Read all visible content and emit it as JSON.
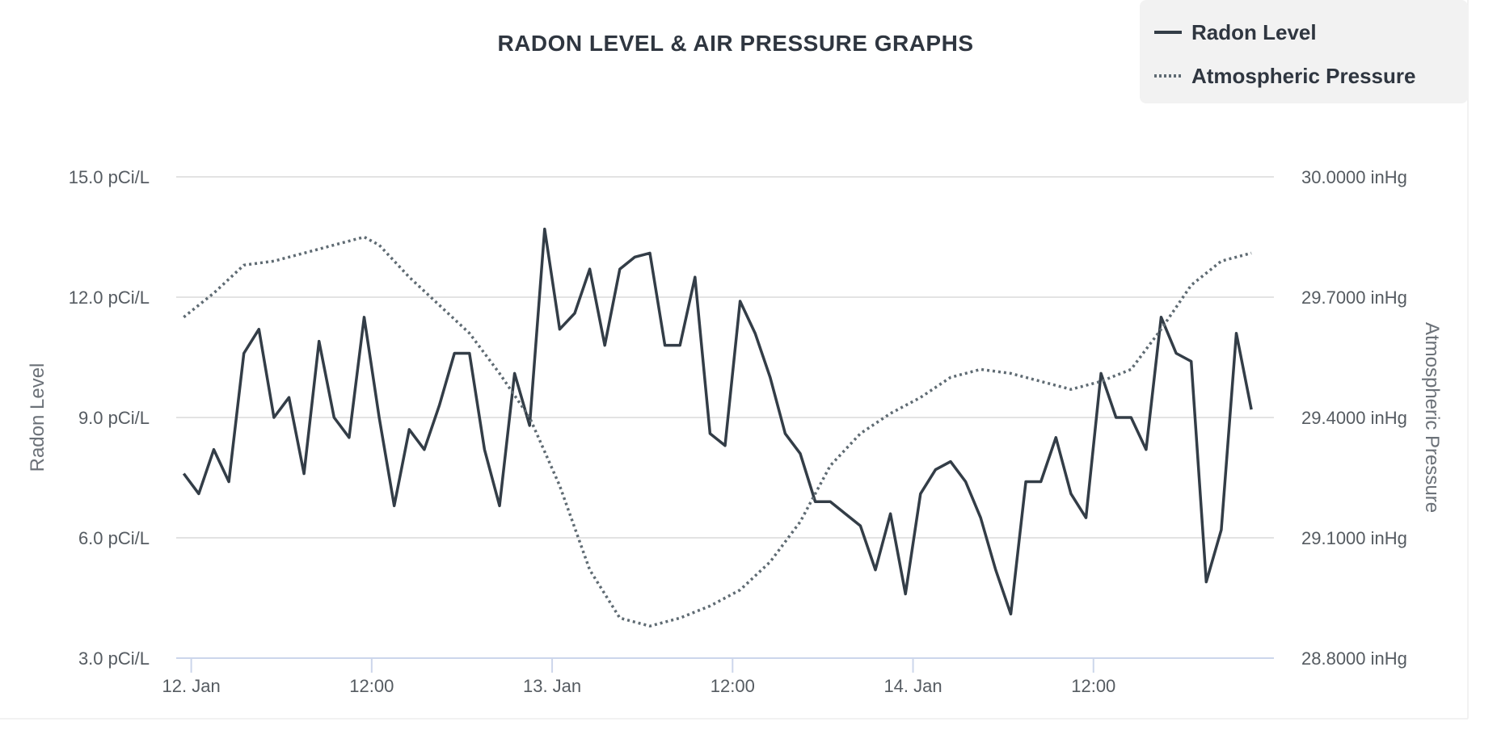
{
  "chart_data": {
    "type": "line",
    "title": "RADON LEVEL & AIR PRESSURE GRAPHS",
    "x_tick_labels": [
      "12. Jan",
      "12:00",
      "13. Jan",
      "12:00",
      "14. Jan",
      "12:00"
    ],
    "x_tick_hours": [
      0,
      12,
      24,
      36,
      48,
      60
    ],
    "x_range_hours": [
      -1,
      72
    ],
    "y_left": {
      "label": "Radon Level",
      "range": [
        3,
        15
      ],
      "ticks": [
        "3.0 pCi/L",
        "6.0 pCi/L",
        "9.0 pCi/L",
        "12.0 pCi/L",
        "15.0 pCi/L"
      ],
      "tick_values": [
        3,
        6,
        9,
        12,
        15
      ]
    },
    "y_right": {
      "label": "Atmospheric Pressure",
      "range": [
        28.8,
        30.0
      ],
      "ticks": [
        "28.8000 inHg",
        "29.1000 inHg",
        "29.4000 inHg",
        "29.7000 inHg",
        "30.0000 inHg"
      ],
      "tick_values": [
        28.8,
        29.1,
        29.4,
        29.7,
        30.0
      ]
    },
    "grid": true,
    "legend_position": "top-right",
    "series": [
      {
        "name": "Radon Level",
        "axis": "left",
        "style": "solid",
        "color": "#333d47",
        "x_hours": [
          -0.5,
          0.5,
          1.5,
          2.5,
          3.5,
          4.5,
          5.5,
          6.5,
          7.5,
          8.5,
          9.5,
          10.5,
          11.5,
          12.5,
          13.5,
          14.5,
          15.5,
          16.5,
          17.5,
          18.5,
          19.5,
          20.5,
          21.5,
          22.5,
          23.5,
          24.5,
          25.5,
          26.5,
          27.5,
          28.5,
          29.5,
          30.5,
          31.5,
          32.5,
          33.5,
          34.5,
          35.5,
          36.5,
          37.5,
          38.5,
          39.5,
          40.5,
          41.5,
          42.5,
          43.5,
          44.5,
          45.5,
          46.5,
          47.5,
          48.5,
          49.5,
          50.5,
          51.5,
          52.5,
          53.5,
          54.5,
          55.5,
          56.5,
          57.5,
          58.5,
          59.5,
          60.5,
          61.5,
          62.5,
          63.5,
          64.5,
          65.5,
          66.5,
          67.5,
          68.5,
          69.5,
          70.5
        ],
        "values": [
          7.6,
          7.1,
          8.2,
          7.4,
          10.6,
          11.2,
          9.0,
          9.5,
          7.6,
          10.9,
          9.0,
          8.5,
          11.5,
          9.0,
          6.8,
          8.7,
          8.2,
          9.3,
          10.6,
          10.6,
          8.2,
          6.8,
          10.1,
          8.8,
          13.7,
          11.2,
          11.6,
          12.7,
          10.8,
          12.7,
          13.0,
          13.1,
          10.8,
          10.8,
          12.5,
          8.6,
          8.3,
          11.9,
          11.1,
          10.0,
          8.6,
          8.1,
          6.9,
          6.9,
          6.6,
          6.3,
          5.2,
          6.6,
          4.6,
          7.1,
          7.7,
          7.9,
          7.4,
          6.5,
          5.2,
          4.1,
          7.4,
          7.4,
          8.5,
          7.1,
          6.5,
          10.1,
          9.0,
          9.0,
          8.2,
          11.5,
          10.6,
          10.4,
          4.9,
          6.2,
          11.1,
          9.2
        ]
      },
      {
        "name": "Atmospheric Pressure",
        "axis": "right",
        "style": "dotted",
        "color": "#5f6b73",
        "x_hours": [
          -0.5,
          1.5,
          3.5,
          5.5,
          7.5,
          9.5,
          11.5,
          12.5,
          14.5,
          16.5,
          18.5,
          20.5,
          22.5,
          24.5,
          26.5,
          28.5,
          30.5,
          32.5,
          34.5,
          36.5,
          38.5,
          40.5,
          42.5,
          44.5,
          46.5,
          48.5,
          50.5,
          52.5,
          54.5,
          56.5,
          58.5,
          60.5,
          62.5,
          64.5,
          66.5,
          68.5,
          70.5
        ],
        "values": [
          29.65,
          29.71,
          29.78,
          29.79,
          29.81,
          29.83,
          29.85,
          29.83,
          29.75,
          29.68,
          29.61,
          29.51,
          29.4,
          29.23,
          29.02,
          28.9,
          28.88,
          28.9,
          28.93,
          28.97,
          29.04,
          29.14,
          29.28,
          29.36,
          29.41,
          29.45,
          29.5,
          29.52,
          29.51,
          29.49,
          29.47,
          29.49,
          29.52,
          29.62,
          29.73,
          29.79,
          29.81
        ]
      }
    ]
  }
}
